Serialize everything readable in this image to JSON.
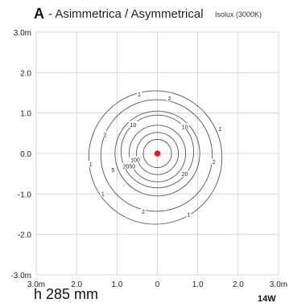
{
  "header": {
    "letter": "A",
    "title": " - Asimmetrica / Asymmetrical",
    "subtitle": "Isolux (3000K)"
  },
  "footer": {
    "height": "h 285 mm",
    "power": "14W"
  },
  "colors": {
    "grid": "#cfcfcf",
    "contour": "#555555",
    "source": "#e02020"
  },
  "chart_data": {
    "type": "contour",
    "title": "Isolux (3000K)",
    "xlim": [
      -3.0,
      3.0
    ],
    "ylim": [
      -3.0,
      3.0
    ],
    "grid": true,
    "x_ticks": [
      {
        "value": -3.0,
        "label": "3.0m"
      },
      {
        "value": -2.0,
        "label": "2.0"
      },
      {
        "value": -1.0,
        "label": "1.0"
      },
      {
        "value": 0.0,
        "label": "0"
      },
      {
        "value": 1.0,
        "label": "1.0"
      },
      {
        "value": 2.0,
        "label": "2.0"
      },
      {
        "value": 3.0,
        "label": "3.0m"
      }
    ],
    "y_ticks": [
      {
        "value": 3.0,
        "label": "3.0m"
      },
      {
        "value": 2.0,
        "label": "2.0"
      },
      {
        "value": 1.0,
        "label": "1.0"
      },
      {
        "value": 0.0,
        "label": "0.0"
      },
      {
        "value": -1.0,
        "label": "-1.0"
      },
      {
        "value": -2.0,
        "label": "-2.0"
      },
      {
        "value": -3.0,
        "label": "-3.0m"
      }
    ],
    "source": {
      "x": 0.0,
      "y": 0.0
    },
    "contours": [
      {
        "level": "1",
        "cx": -0.05,
        "cy": -0.1,
        "rx": 1.65,
        "ry": 1.65
      },
      {
        "level": "2",
        "cx": -0.02,
        "cy": -0.05,
        "rx": 1.38,
        "ry": 1.38
      },
      {
        "level": "5",
        "cx": 0.0,
        "cy": 0.0,
        "rx": 1.05,
        "ry": 1.05
      },
      {
        "level": "10",
        "cx": 0.0,
        "cy": 0.05,
        "rx": 0.9,
        "ry": 0.9
      },
      {
        "level": "20",
        "cx": 0.0,
        "cy": 0.0,
        "rx": 0.7,
        "ry": 0.7
      },
      {
        "level": "50",
        "cx": 0.0,
        "cy": 0.0,
        "rx": 0.52,
        "ry": 0.52
      },
      {
        "level": "100",
        "cx": 0.0,
        "cy": 0.0,
        "rx": 0.35,
        "ry": 0.35
      }
    ],
    "labels": [
      {
        "text": "1",
        "x": -0.45,
        "y": 1.45
      },
      {
        "text": "2",
        "x": 0.3,
        "y": 1.35
      },
      {
        "text": "10",
        "x": -0.6,
        "y": 0.7
      },
      {
        "text": "10",
        "x": 0.68,
        "y": 0.65
      },
      {
        "text": "1",
        "x": 1.55,
        "y": 0.6
      },
      {
        "text": "2",
        "x": -1.3,
        "y": 0.45
      },
      {
        "text": "100",
        "x": -0.55,
        "y": -0.17
      },
      {
        "text": "2050",
        "x": -0.7,
        "y": -0.33
      },
      {
        "text": "5",
        "x": -1.1,
        "y": -0.42
      },
      {
        "text": "1",
        "x": -1.65,
        "y": -0.28
      },
      {
        "text": "2",
        "x": 1.4,
        "y": -0.22
      },
      {
        "text": "20",
        "x": 0.68,
        "y": -0.52
      },
      {
        "text": "1",
        "x": -1.35,
        "y": -1.0
      },
      {
        "text": "2",
        "x": -0.35,
        "y": -1.45
      },
      {
        "text": "1",
        "x": 0.78,
        "y": -1.52
      }
    ]
  }
}
